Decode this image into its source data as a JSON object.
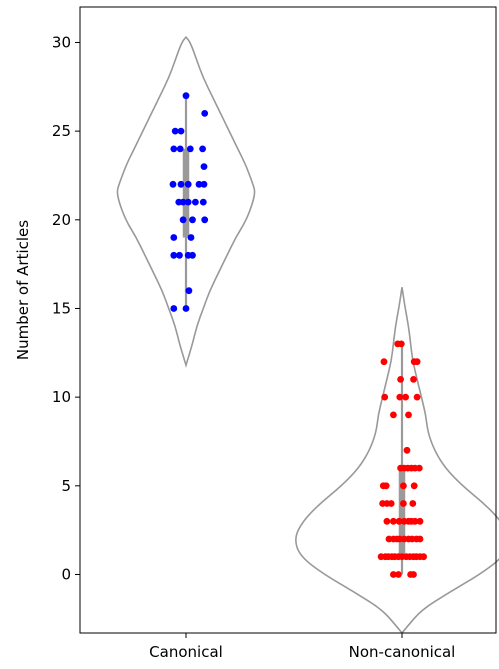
{
  "chart_data": {
    "type": "violin",
    "title": "",
    "xlabel": "",
    "ylabel": "Number of Articles",
    "ylim": [
      -3.3,
      32.0
    ],
    "yticks": [
      0,
      5,
      10,
      15,
      20,
      25,
      30
    ],
    "categories": [
      "Canonical",
      "Non-canonical"
    ],
    "grid": false,
    "violin_outline_color": "#999999",
    "box_color": "#9a9a9a",
    "series": [
      {
        "category": "Canonical",
        "color": "#0000ff",
        "quartiles": [
          19,
          24
        ],
        "whiskers": [
          15,
          27
        ],
        "violin_range": [
          11.8,
          30.3
        ],
        "density": [
          [
            11.8,
            0.0
          ],
          [
            13,
            0.03
          ],
          [
            14,
            0.05
          ],
          [
            15,
            0.08
          ],
          [
            16,
            0.11
          ],
          [
            17,
            0.15
          ],
          [
            18,
            0.19
          ],
          [
            19,
            0.23
          ],
          [
            20,
            0.28
          ],
          [
            21,
            0.31
          ],
          [
            21.6,
            0.32
          ],
          [
            22,
            0.31
          ],
          [
            23,
            0.28
          ],
          [
            24,
            0.24
          ],
          [
            25,
            0.2
          ],
          [
            26,
            0.16
          ],
          [
            27,
            0.12
          ],
          [
            28,
            0.08
          ],
          [
            29,
            0.05
          ],
          [
            30,
            0.02
          ],
          [
            30.3,
            0.0
          ]
        ],
        "points": [
          [
            -0.18,
            22
          ],
          [
            -0.07,
            22
          ],
          [
            0.03,
            22
          ],
          [
            0.18,
            22
          ],
          [
            0.25,
            22
          ],
          [
            -0.1,
            21
          ],
          [
            -0.04,
            21
          ],
          [
            0.03,
            21
          ],
          [
            0.13,
            21
          ],
          [
            0.24,
            21
          ],
          [
            -0.04,
            20
          ],
          [
            0.09,
            20
          ],
          [
            0.26,
            20
          ],
          [
            -0.17,
            19
          ],
          [
            0.07,
            19
          ],
          [
            -0.17,
            18
          ],
          [
            -0.09,
            18
          ],
          [
            0.03,
            18
          ],
          [
            0.09,
            18
          ],
          [
            0.04,
            16
          ],
          [
            -0.17,
            15
          ],
          [
            0.0,
            15
          ],
          [
            -0.17,
            24
          ],
          [
            -0.08,
            24
          ],
          [
            0.06,
            24
          ],
          [
            0.23,
            24
          ],
          [
            -0.15,
            25
          ],
          [
            -0.07,
            25
          ],
          [
            0.25,
            23
          ],
          [
            0.26,
            26
          ],
          [
            0.0,
            27
          ]
        ]
      },
      {
        "category": "Non-canonical",
        "color": "#ff0000",
        "quartiles": [
          1,
          6
        ],
        "whiskers": [
          0,
          13
        ],
        "violin_range": [
          -3.3,
          16.2
        ],
        "density": [
          [
            -3.3,
            0.0
          ],
          [
            -3,
            0.02
          ],
          [
            -2,
            0.09
          ],
          [
            -1,
            0.22
          ],
          [
            0,
            0.36
          ],
          [
            1,
            0.47
          ],
          [
            2,
            0.5
          ],
          [
            3,
            0.46
          ],
          [
            4,
            0.38
          ],
          [
            5,
            0.28
          ],
          [
            6,
            0.2
          ],
          [
            7,
            0.15
          ],
          [
            8,
            0.12
          ],
          [
            9,
            0.11
          ],
          [
            10,
            0.09
          ],
          [
            11,
            0.07
          ],
          [
            12,
            0.05
          ],
          [
            13,
            0.04
          ],
          [
            14,
            0.03
          ],
          [
            15,
            0.015
          ],
          [
            16.2,
            0.0
          ]
        ],
        "points": [
          [
            -0.06,
            13
          ],
          [
            -0.01,
            13
          ],
          [
            -0.25,
            12
          ],
          [
            0.17,
            12
          ],
          [
            0.21,
            12
          ],
          [
            -0.02,
            11
          ],
          [
            0.16,
            11
          ],
          [
            -0.24,
            10
          ],
          [
            -0.03,
            10
          ],
          [
            0.05,
            10
          ],
          [
            0.21,
            10
          ],
          [
            -0.12,
            9
          ],
          [
            0.09,
            9
          ],
          [
            0.07,
            7
          ],
          [
            -0.02,
            6
          ],
          [
            0.03,
            6
          ],
          [
            0.08,
            6
          ],
          [
            0.13,
            6
          ],
          [
            0.18,
            6
          ],
          [
            0.24,
            6
          ],
          [
            -0.26,
            5
          ],
          [
            -0.22,
            5
          ],
          [
            0.02,
            5
          ],
          [
            0.17,
            5
          ],
          [
            -0.27,
            4
          ],
          [
            -0.21,
            4
          ],
          [
            -0.15,
            4
          ],
          [
            0.02,
            4
          ],
          [
            0.15,
            4
          ],
          [
            -0.21,
            3
          ],
          [
            -0.12,
            3
          ],
          [
            -0.04,
            3
          ],
          [
            0.03,
            3
          ],
          [
            0.09,
            3
          ],
          [
            0.13,
            3
          ],
          [
            0.18,
            3
          ],
          [
            0.25,
            3
          ],
          [
            -0.18,
            2
          ],
          [
            -0.12,
            2
          ],
          [
            -0.07,
            2
          ],
          [
            -0.03,
            2
          ],
          [
            0.03,
            2
          ],
          [
            0.09,
            2
          ],
          [
            0.14,
            2
          ],
          [
            0.2,
            2
          ],
          [
            0.25,
            2
          ],
          [
            -0.29,
            1
          ],
          [
            -0.23,
            1
          ],
          [
            -0.19,
            1
          ],
          [
            -0.14,
            1
          ],
          [
            -0.1,
            1
          ],
          [
            -0.05,
            1
          ],
          [
            0.0,
            1
          ],
          [
            0.06,
            1
          ],
          [
            0.11,
            1
          ],
          [
            0.16,
            1
          ],
          [
            0.2,
            1
          ],
          [
            0.25,
            1
          ],
          [
            0.3,
            1
          ],
          [
            -0.12,
            0
          ],
          [
            -0.05,
            0
          ],
          [
            0.12,
            0
          ],
          [
            0.16,
            0
          ]
        ]
      }
    ]
  }
}
